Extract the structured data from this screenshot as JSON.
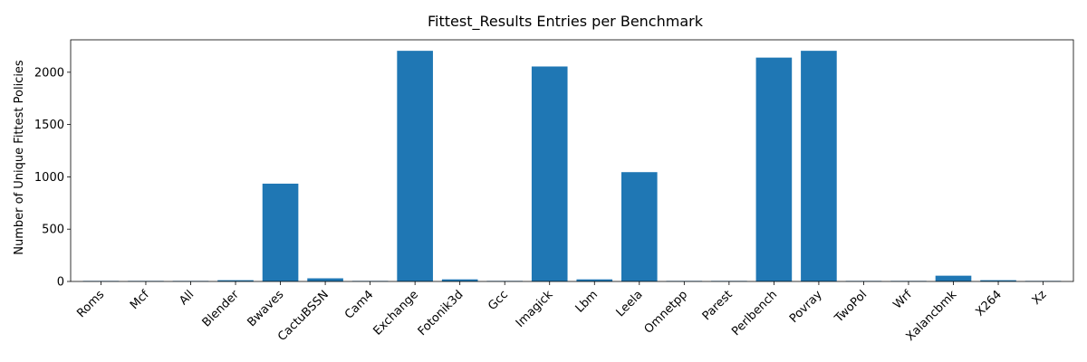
{
  "chart_data": {
    "type": "bar",
    "title": "Fittest_Results Entries per Benchmark",
    "xlabel": "",
    "ylabel": "Number of Unique Fittest Policies",
    "categories": [
      "Roms",
      "Mcf",
      "All",
      "Blender",
      "Bwaves",
      "CactuBSSN",
      "Cam4",
      "Exchange",
      "Fotonik3d",
      "Gcc",
      "Imagick",
      "Lbm",
      "Leela",
      "Omnetpp",
      "Parest",
      "Perlbench",
      "Povray",
      "TwoPol",
      "Wrf",
      "Xalancbmk",
      "X264",
      "Xz"
    ],
    "values": [
      5,
      5,
      5,
      12,
      935,
      30,
      5,
      2205,
      20,
      5,
      2055,
      20,
      1045,
      5,
      5,
      2140,
      2205,
      5,
      5,
      55,
      12,
      5
    ],
    "ylim": [
      0,
      2310
    ],
    "yticks": [
      0,
      500,
      1000,
      1500,
      2000
    ],
    "grid": false,
    "bar_color": "#1f77b4"
  }
}
